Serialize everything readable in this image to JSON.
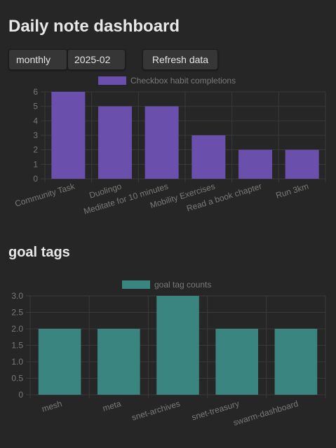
{
  "page": {
    "title": "Daily note dashboard",
    "goal_section_title": "goal tags"
  },
  "controls": {
    "period": "monthly",
    "month": "2025-02",
    "refresh_label": "Refresh data"
  },
  "colors": {
    "background": "#262626",
    "habit_bar": "#6a4fad",
    "goal_bar": "#3a8580",
    "grid": "#3a3a3a",
    "tick_text": "#7a7a7a"
  },
  "chart_data": [
    {
      "type": "bar",
      "title": "",
      "legend": "Checkbox habit completions",
      "legend_position": "top",
      "categories": [
        "Community Task",
        "Duolingo",
        "Meditate for 10 minutes",
        "Mobility Exercises",
        "Read a book chapter",
        "Run 3km"
      ],
      "series": [
        {
          "name": "Checkbox habit completions",
          "values": [
            6,
            5,
            5,
            3,
            2,
            2
          ]
        }
      ],
      "yticks": [
        "0",
        "1",
        "2",
        "3",
        "4",
        "5",
        "6"
      ],
      "ylim": [
        0,
        6
      ],
      "grid": true,
      "xlabel": "",
      "ylabel": ""
    },
    {
      "type": "bar",
      "title": "",
      "legend": "goal tag counts",
      "legend_position": "top",
      "categories": [
        "mesh",
        "meta",
        "snet-archives",
        "snet-treasury",
        "swarm-dashboard"
      ],
      "series": [
        {
          "name": "goal tag counts",
          "values": [
            2,
            2,
            3,
            2,
            2
          ]
        }
      ],
      "yticks": [
        "0",
        "0.5",
        "1.0",
        "1.5",
        "2.0",
        "2.5",
        "3.0"
      ],
      "ylim": [
        0,
        3
      ],
      "grid": true,
      "xlabel": "",
      "ylabel": ""
    }
  ]
}
